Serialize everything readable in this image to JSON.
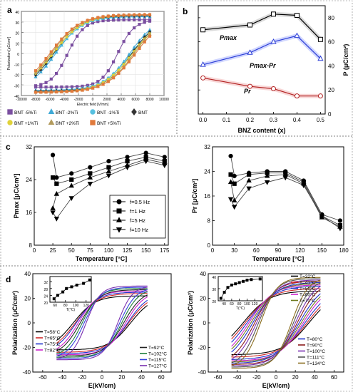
{
  "panels": {
    "a": "a",
    "b": "b",
    "c": "c",
    "d": "d"
  },
  "chart_data": [
    {
      "id": "a",
      "type": "line",
      "xlabel": "Electric field [V/mm]",
      "ylabel": "Polarization [μC/cm²]",
      "xlim": [
        -10000,
        10000
      ],
      "ylim": [
        -40,
        40
      ],
      "xticks": [
        "-10000",
        "-8000",
        "-6000",
        "-4000",
        "-2000",
        "0",
        "2000",
        "4000",
        "6000",
        "8000",
        "10000"
      ],
      "yticks": [
        "-40",
        "-30",
        "-20",
        "-10",
        "0",
        "10",
        "20",
        "30",
        "40"
      ],
      "series": [
        {
          "name": "BNT -5%Ti",
          "color": "#7b4fa0",
          "marker": "square",
          "Ec": 3500,
          "Ps": 32,
          "Pr": 29
        },
        {
          "name": "BNT -2%Ti",
          "color": "#3fa9d6",
          "marker": "triangle",
          "Ec": 5200,
          "Ps": 35,
          "Pr": 31
        },
        {
          "name": "BNT -1%Ti",
          "color": "#57c0e0",
          "marker": "circle",
          "Ec": 5400,
          "Ps": 36,
          "Pr": 31
        },
        {
          "name": "BNT",
          "color": "#333333",
          "marker": "diamond",
          "Ec": 5500,
          "Ps": 36,
          "Pr": 32
        },
        {
          "name": "BNT +1%Ti",
          "color": "#e0d23a",
          "marker": "circle",
          "Ec": 5600,
          "Ps": 37,
          "Pr": 32
        },
        {
          "name": "BNT +2%Ti",
          "color": "#b29a5c",
          "marker": "triangle",
          "Ec": 5800,
          "Ps": 37,
          "Pr": 33
        },
        {
          "name": "BNT +5%Ti",
          "color": "#e07a3c",
          "marker": "square",
          "Ec": 6000,
          "Ps": 37,
          "Pr": 33
        }
      ]
    },
    {
      "id": "b",
      "type": "line",
      "xlabel": "BNZ content (x)",
      "ylabel": "P (μC/cm²)",
      "xlim": [
        -0.02,
        0.52
      ],
      "ylim": [
        0,
        90
      ],
      "xticks": [
        "0.0",
        "0.1",
        "0.2",
        "0.3",
        "0.4",
        "0.5"
      ],
      "yticks": [
        "0",
        "20",
        "40",
        "60",
        "80"
      ],
      "series": [
        {
          "name": "Pmax",
          "color": "#000000",
          "marker": "square-open",
          "x": [
            0.0,
            0.2,
            0.3,
            0.4,
            0.5
          ],
          "y": [
            70,
            74,
            83,
            82,
            62
          ]
        },
        {
          "name": "Pmax-Pr",
          "color": "#2d3fd6",
          "marker": "triangle-open",
          "x": [
            0.0,
            0.2,
            0.3,
            0.4,
            0.5
          ],
          "y": [
            41,
            51,
            60,
            65,
            46
          ]
        },
        {
          "name": "Pr",
          "color": "#b22222",
          "marker": "circle-open",
          "x": [
            0.0,
            0.2,
            0.3,
            0.4,
            0.5
          ],
          "y": [
            30,
            23,
            21,
            15,
            15
          ]
        }
      ]
    },
    {
      "id": "c1",
      "type": "line",
      "xlabel": "Temperature [°C]",
      "ylabel": "Pmax [μC/cm²]",
      "xlim": [
        0,
        180
      ],
      "ylim": [
        8,
        32
      ],
      "xticks": [
        "0",
        "25",
        "50",
        "75",
        "100",
        "125",
        "150",
        "175"
      ],
      "yticks": [
        "8",
        "16",
        "24",
        "32"
      ],
      "x": [
        25,
        30,
        50,
        75,
        100,
        125,
        150,
        175
      ],
      "series": [
        {
          "name": "f=0.5 Hz",
          "marker": "circle",
          "y": [
            30.0,
            24.5,
            25.5,
            27.0,
            28.5,
            29.5,
            30.5,
            29.5
          ]
        },
        {
          "name": "f=1 Hz",
          "marker": "square",
          "y": [
            24.5,
            23.0,
            24.0,
            25.5,
            27.0,
            28.5,
            29.5,
            28.5
          ]
        },
        {
          "name": "f=5 Hz",
          "marker": "triangle",
          "y": [
            17.0,
            20.5,
            22.5,
            24.5,
            26.0,
            27.5,
            29.0,
            28.0
          ]
        },
        {
          "name": "f=10 Hz",
          "marker": "triangle-down",
          "y": [
            16.0,
            14.5,
            19.5,
            23.0,
            25.0,
            27.0,
            28.5,
            27.5
          ]
        }
      ]
    },
    {
      "id": "c2",
      "type": "line",
      "xlabel": "Temperature [°C]",
      "ylabel": "Pr [μC/cm²]",
      "xlim": [
        0,
        180
      ],
      "ylim": [
        0,
        32
      ],
      "xticks": [
        "0",
        "30",
        "60",
        "90",
        "120",
        "150",
        "180"
      ],
      "yticks": [
        "0",
        "8",
        "16",
        "24",
        "32"
      ],
      "x": [
        25,
        30,
        50,
        75,
        100,
        125,
        150,
        175
      ],
      "series": [
        {
          "name": "f=0.5 Hz",
          "marker": "circle",
          "y": [
            29.0,
            22.5,
            23.5,
            24.0,
            24.0,
            21.0,
            10.0,
            8.0
          ]
        },
        {
          "name": "f=1 Hz",
          "marker": "square",
          "y": [
            23.0,
            20.0,
            23.0,
            23.5,
            23.5,
            20.5,
            9.5,
            6.5
          ]
        },
        {
          "name": "f=5 Hz",
          "marker": "triangle",
          "y": [
            20.5,
            14.5,
            21.0,
            22.5,
            23.0,
            20.0,
            9.0,
            6.0
          ]
        },
        {
          "name": "f=10 Hz",
          "marker": "triangle-down",
          "y": [
            15.0,
            12.5,
            18.5,
            20.5,
            22.0,
            19.5,
            9.5,
            5.5
          ]
        }
      ]
    },
    {
      "id": "d1",
      "type": "line",
      "xlabel": "E(kV/cm)",
      "ylabel": "Polarization (μC/cm²)",
      "xlim": [
        -70,
        70
      ],
      "ylim": [
        -40,
        40
      ],
      "xticks": [
        "-60",
        "-40",
        "-20",
        "0",
        "20",
        "40",
        "60"
      ],
      "yticks": [
        "-40",
        "-20",
        "0",
        "20",
        "40"
      ],
      "series": [
        {
          "name": "T=58°C",
          "color": "#000000",
          "Ec": 29,
          "Ps": 22,
          "Pr": 19
        },
        {
          "name": "T=65°C",
          "color": "#d12727",
          "Ec": 27,
          "Ps": 24,
          "Pr": 20
        },
        {
          "name": "T=75°C",
          "color": "#2233cc",
          "Ec": 26,
          "Ps": 25,
          "Pr": 21
        },
        {
          "name": "T=82°C",
          "color": "#cc22cc",
          "Ec": 24,
          "Ps": 26,
          "Pr": 22
        },
        {
          "name": "T=92°C",
          "color": "#222222",
          "Ec": 22,
          "Ps": 27,
          "Pr": 22
        },
        {
          "name": "T=102°C",
          "color": "#1b7f3a",
          "Ec": 20,
          "Ps": 28,
          "Pr": 23
        },
        {
          "name": "T=115°C",
          "color": "#3344dd",
          "Ec": 18,
          "Ps": 29,
          "Pr": 23
        },
        {
          "name": "T=127°C",
          "color": "#7a2fb0",
          "Ec": 16,
          "Ps": 30,
          "Pr": 24
        }
      ],
      "inset": {
        "xlabel": "T(°C)",
        "xlim": [
          50,
          130
        ],
        "ylim": [
          20,
          35
        ],
        "xticks": [
          "60",
          "80",
          "100",
          "120"
        ],
        "yticks": [
          "20",
          "24",
          "28",
          "32"
        ],
        "x": [
          58,
          65,
          75,
          82,
          92,
          102,
          115,
          127
        ],
        "y": [
          22,
          24,
          26,
          28,
          29,
          30,
          31,
          33
        ]
      }
    },
    {
      "id": "d2",
      "type": "line",
      "xlabel": "E(kV/cm)",
      "ylabel": "Polarization (μC/cm²)",
      "xlim": [
        -70,
        70
      ],
      "ylim": [
        -40,
        40
      ],
      "xticks": [
        "-60",
        "-40",
        "-20",
        "0",
        "20",
        "40",
        "60"
      ],
      "yticks": [
        "-40",
        "-20",
        "0",
        "20",
        "40"
      ],
      "series": [
        {
          "name": "T=32°C",
          "color": "#000000",
          "Ec": 34,
          "Ps": 26,
          "Pr": 22
        },
        {
          "name": "T=41°C",
          "color": "#d12727",
          "Ec": 32,
          "Ps": 28,
          "Pr": 23
        },
        {
          "name": "T=50°C",
          "color": "#2233cc",
          "Ec": 30,
          "Ps": 30,
          "Pr": 24
        },
        {
          "name": "T=60°C",
          "color": "#cc22cc",
          "Ec": 28,
          "Ps": 31,
          "Pr": 25
        },
        {
          "name": "T=70°C",
          "color": "#6e7a1f",
          "Ec": 26,
          "Ps": 32,
          "Pr": 25
        },
        {
          "name": "T=80°C",
          "color": "#2233cc",
          "Ec": 24,
          "Ps": 33,
          "Pr": 25
        },
        {
          "name": "T=90°C",
          "color": "#8b1a1a",
          "Ec": 22,
          "Ps": 34,
          "Pr": 26
        },
        {
          "name": "T=100°C",
          "color": "#7a2fb0",
          "Ec": 20,
          "Ps": 35,
          "Pr": 26
        },
        {
          "name": "T=111°C",
          "color": "#555555",
          "Ec": 18,
          "Ps": 36,
          "Pr": 27
        },
        {
          "name": "T=134°C",
          "color": "#8a6d1f",
          "Ec": 16,
          "Ps": 37,
          "Pr": 27
        }
      ],
      "inset": {
        "xlabel": "T(°C)",
        "xlim": [
          25,
          140
        ],
        "ylim": [
          20,
          40
        ],
        "xticks": [
          "40",
          "60",
          "80",
          "100",
          "120"
        ],
        "yticks": [
          "20",
          "30",
          "40"
        ],
        "x": [
          32,
          41,
          50,
          60,
          70,
          80,
          90,
          100,
          111,
          134
        ],
        "y": [
          22,
          27,
          31,
          33,
          34,
          35,
          36,
          37,
          37.5,
          38
        ]
      }
    }
  ]
}
